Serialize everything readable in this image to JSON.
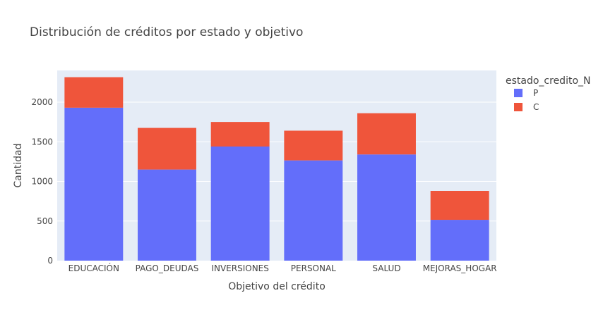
{
  "chart_data": {
    "type": "bar",
    "barmode": "stack",
    "title": "Distribución de créditos por estado y objetivo",
    "xlabel": "Objetivo del crédito",
    "ylabel": "Cantidad",
    "categories": [
      "EDUCACIÓN",
      "PAGO_DEUDAS",
      "INVERSIONES",
      "PERSONAL",
      "SALUD",
      "MEJORAS_HOGAR"
    ],
    "series": [
      {
        "name": "P",
        "color": "#636efa",
        "values": [
          1930,
          1150,
          1440,
          1265,
          1340,
          515
        ]
      },
      {
        "name": "C",
        "color": "#ef553b",
        "values": [
          385,
          525,
          310,
          375,
          520,
          365
        ]
      }
    ],
    "ylim": [
      0,
      2400
    ],
    "yticks": [
      0,
      500,
      1000,
      1500,
      2000
    ],
    "legend": {
      "title": "estado_credito_N",
      "placement": "top-right"
    },
    "grid": true,
    "plot_background": "#e5ecf6"
  }
}
